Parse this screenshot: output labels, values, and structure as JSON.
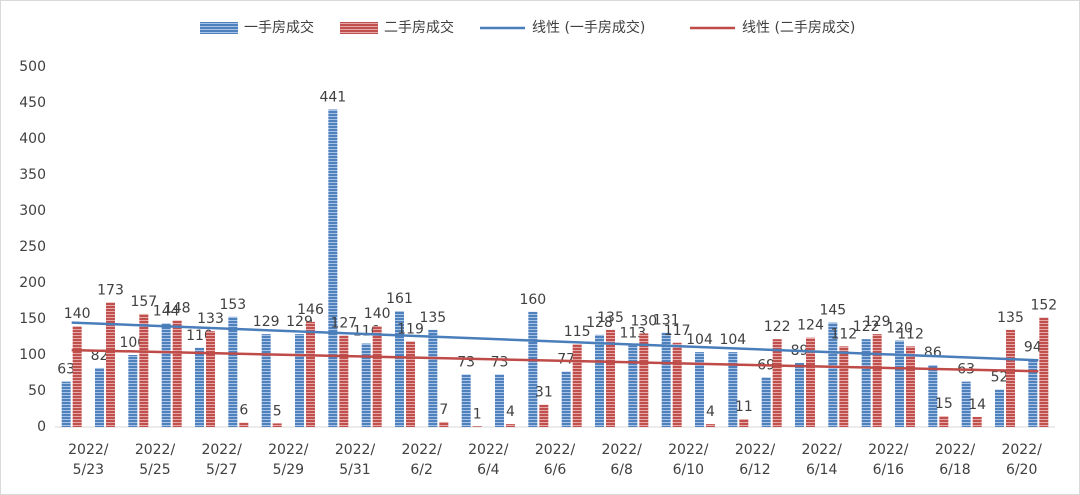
{
  "chart_data": {
    "type": "bar",
    "categories": [
      "2022/\n5/23",
      null,
      "2022/\n5/25",
      null,
      "2022/\n5/27",
      null,
      "2022/\n5/29",
      null,
      "2022/\n5/31",
      null,
      "2022/\n6/2",
      null,
      "2022/\n6/4",
      null,
      "2022/\n6/6",
      null,
      "2022/\n6/8",
      null,
      "2022/\n6/10",
      null,
      "2022/\n6/12",
      null,
      "2022/\n6/14",
      null,
      "2022/\n6/16",
      null,
      "2022/\n6/18",
      null,
      "2022/\n6/20",
      null
    ],
    "series": [
      {
        "name": "一手房成交",
        "color": "#4f81bd",
        "values": [
          63,
          82,
          100,
          144,
          110,
          153,
          129,
          129,
          441,
          116,
          161,
          135,
          73,
          73,
          160,
          77,
          128,
          113,
          131,
          104,
          104,
          69,
          89,
          145,
          122,
          120,
          86,
          63,
          52,
          94
        ]
      },
      {
        "name": "二手房成交",
        "color": "#c0504d",
        "values": [
          140,
          173,
          157,
          148,
          133,
          6,
          5,
          146,
          127,
          140,
          119,
          7,
          1,
          4,
          31,
          115,
          135,
          130,
          117,
          4,
          11,
          122,
          124,
          112,
          129,
          112,
          15,
          14,
          135,
          152
        ]
      }
    ],
    "trendlines": [
      {
        "name": "线性 (一手房成交)",
        "color": "#4a7ebb",
        "series": 0
      },
      {
        "name": "线性 (二手房成交)",
        "color": "#be4b48",
        "series": 1
      }
    ],
    "ylim": [
      0,
      500
    ],
    "yticks": [
      0,
      50,
      100,
      150,
      200,
      250,
      300,
      350,
      400,
      450,
      500
    ],
    "grid": false
  }
}
